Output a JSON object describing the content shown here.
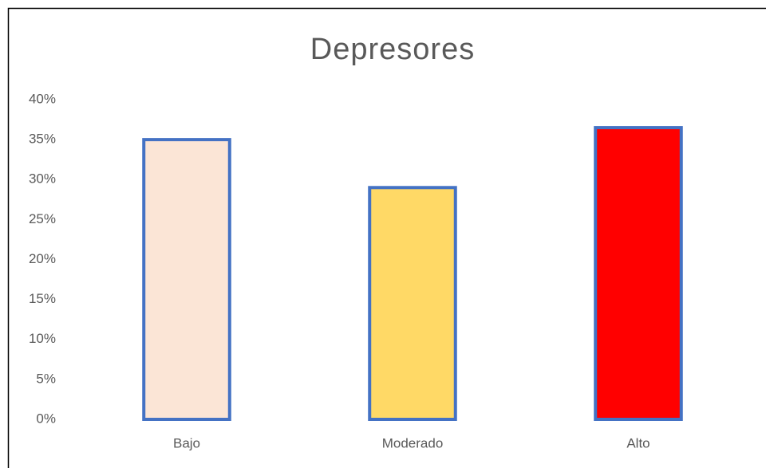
{
  "chart_data": {
    "type": "bar",
    "title": "Depresores",
    "categories": [
      "Bajo",
      "Moderado",
      "Alto"
    ],
    "values": [
      35,
      29,
      36.5
    ],
    "colors": [
      "#fbe5d6",
      "#ffd966",
      "#ff0000"
    ],
    "edgecolor": "#4472c4",
    "ylim": [
      0,
      40
    ],
    "yticks": [
      {
        "value": 0,
        "label": "0%"
      },
      {
        "value": 5,
        "label": "5%"
      },
      {
        "value": 10,
        "label": "10%"
      },
      {
        "value": 15,
        "label": "15%"
      },
      {
        "value": 20,
        "label": "20%"
      },
      {
        "value": 25,
        "label": "25%"
      },
      {
        "value": 30,
        "label": "30%"
      },
      {
        "value": 35,
        "label": "35%"
      },
      {
        "value": 40,
        "label": "40%"
      }
    ],
    "grid": false
  }
}
